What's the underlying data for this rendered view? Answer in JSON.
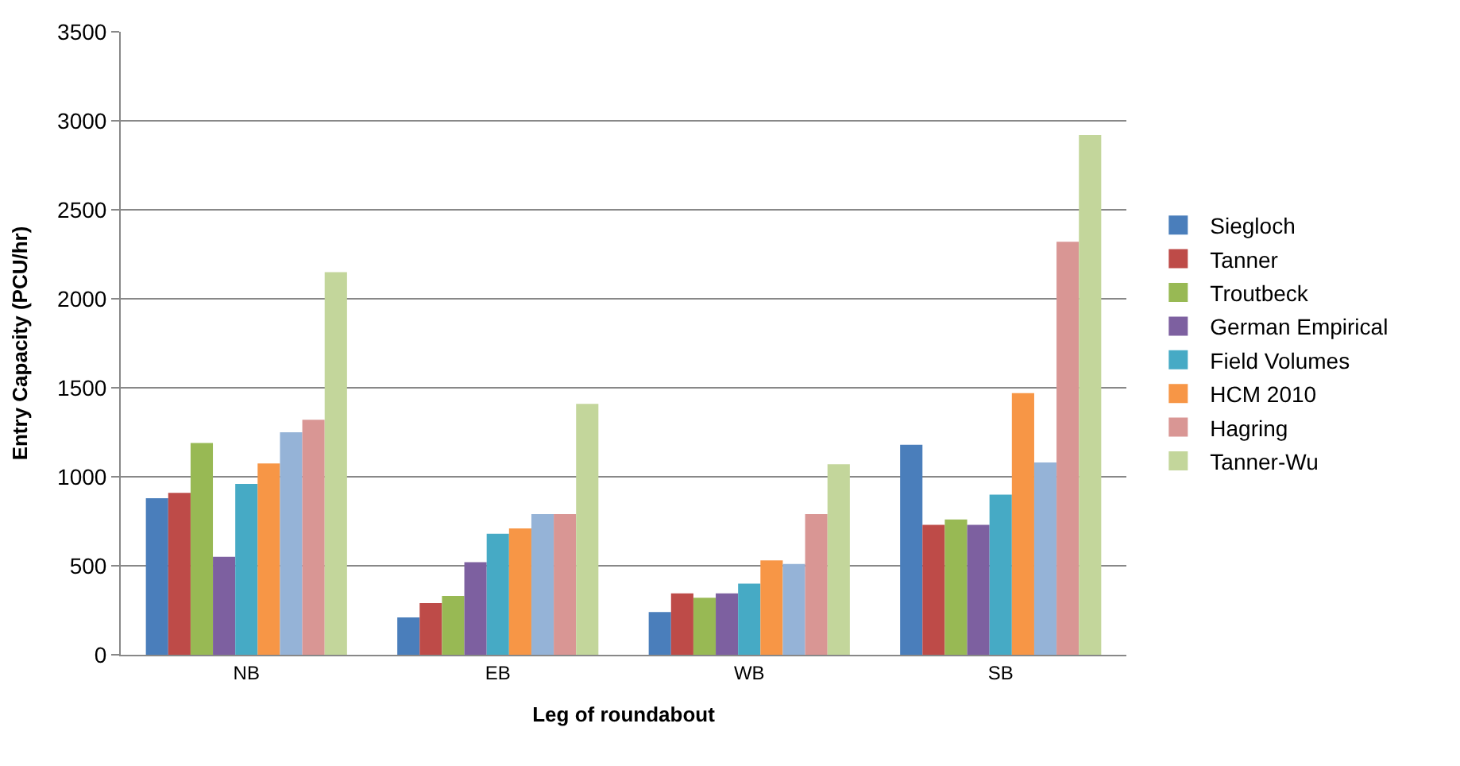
{
  "chart_data": {
    "type": "bar",
    "xlabel": "Leg of roundabout",
    "ylabel": "Entry Capacity (PCU/hr)",
    "categories": [
      "NB",
      "EB",
      "WB",
      "SB"
    ],
    "series": [
      {
        "name": "Siegloch",
        "color": "#4a7ebb",
        "values": [
          880,
          210,
          240,
          1180
        ]
      },
      {
        "name": "Tanner",
        "color": "#be4b48",
        "values": [
          910,
          290,
          345,
          730
        ]
      },
      {
        "name": "Troutbeck",
        "color": "#98b954",
        "values": [
          1190,
          330,
          320,
          760
        ]
      },
      {
        "name": "German Empirical",
        "color": "#7d60a0",
        "values": [
          550,
          520,
          345,
          730
        ]
      },
      {
        "name": "Field Volumes",
        "color": "#46aac5",
        "values": [
          960,
          680,
          400,
          900
        ]
      },
      {
        "name": "HCM 2010",
        "color": "#f79646",
        "values": [
          1075,
          710,
          530,
          1470
        ]
      },
      {
        "color": "#95b3d7",
        "values": [
          1250,
          790,
          510,
          1080
        ]
      },
      {
        "name": "Hagring",
        "color": "#d99694",
        "values": [
          1320,
          790,
          790,
          2320
        ]
      },
      {
        "name": "Tanner-Wu",
        "color": "#c3d69b",
        "values": [
          2150,
          1410,
          1070,
          2920
        ]
      }
    ],
    "ylim": [
      0,
      3500
    ],
    "yticks": [
      0,
      500,
      1000,
      1500,
      2000,
      2500,
      3000,
      3500
    ],
    "grid": "y",
    "legend": "right"
  }
}
